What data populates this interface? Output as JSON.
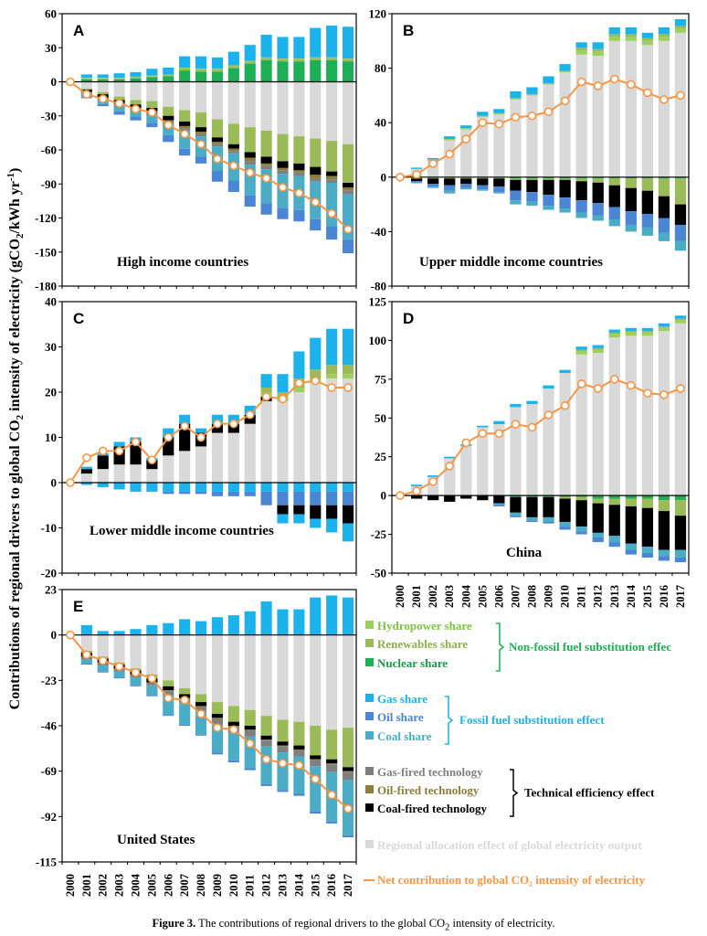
{
  "y_axis_title": "Contributions of regional drivers to global CO",
  "y_axis_title_sub": "2",
  "y_axis_title_rest": " intensity of electricity (gCO",
  "y_axis_title_sub2": "2",
  "y_axis_title_unit": "/kWh yr",
  "y_axis_title_sup": "-1",
  "y_axis_title_end": ")",
  "caption": {
    "bold": "Figure 3.",
    "text": " The contributions of regional drivers to the global CO",
    "sub": "2",
    "end": " intensity of electricity."
  },
  "colors": {
    "hydro": "#9bd15a",
    "renew": "#9bbb59",
    "nuclear": "#1daf55",
    "gas_share": "#1cb2ec",
    "oil_share": "#4a86d4",
    "coal_share": "#4bacc6",
    "gas_tech": "#7f7f7f",
    "oil_tech": "#8b7d3a",
    "coal_tech": "#000000",
    "alloc": "#d9d9d9",
    "net": "#f79646"
  },
  "legend": {
    "items": [
      {
        "key": "hydro",
        "label": "Hydropower share",
        "text_color": "#7dc242"
      },
      {
        "key": "renew",
        "label": "Renewables share",
        "text_color": "#8cae4d"
      },
      {
        "key": "nuclear",
        "label": "Nuclear share",
        "text_color": "#1a9a4a"
      },
      {
        "key": "gas_share",
        "label": "Gas share",
        "text_color": "#1cb2ec"
      },
      {
        "key": "oil_share",
        "label": "Oil share",
        "text_color": "#4a86d4"
      },
      {
        "key": "coal_share",
        "label": "Coal share",
        "text_color": "#4bacc6"
      },
      {
        "key": "gas_tech",
        "label": "Gas-fired technology",
        "text_color": "#7f7f7f"
      },
      {
        "key": "oil_tech",
        "label": "Oil-fired technology",
        "text_color": "#8b7d3a"
      },
      {
        "key": "coal_tech",
        "label": "Coal-fired technology",
        "text_color": "#000000"
      },
      {
        "key": "alloc",
        "label": "Regional allocation effect of global electricity output",
        "text_color": "#d9d9d9"
      },
      {
        "key": "net",
        "label": "Net contribution to global CO₂ intensity of electricity",
        "text_color": "#f79646"
      }
    ],
    "groups": [
      {
        "label": "Non-fossil fuel substitution effec",
        "text_color": "#1daf55"
      },
      {
        "label": "Fossil fuel substitution effect",
        "text_color": "#1cb2ec"
      },
      {
        "label": "Technical efficiency effect",
        "text_color": "#000000"
      }
    ]
  },
  "chart_data": [
    {
      "type": "bar",
      "panel": "A",
      "title": "High income countries",
      "ylim": [
        -180,
        60
      ],
      "yticks": [
        -180,
        -150,
        -120,
        -90,
        -60,
        -30,
        0,
        30,
        60
      ],
      "categories": [
        "2000",
        "2001",
        "2002",
        "2003",
        "2004",
        "2005",
        "2006",
        "2007",
        "2008",
        "2009",
        "2010",
        "2011",
        "2012",
        "2013",
        "2014",
        "2015",
        "2016",
        "2017"
      ],
      "series": {
        "nuclear": [
          0,
          2,
          2,
          2,
          3,
          4,
          5,
          10,
          9,
          9,
          12,
          16,
          19,
          18,
          18,
          19,
          19,
          18
        ],
        "renew": [
          0,
          1,
          1,
          1,
          1,
          1,
          1,
          2,
          2,
          2,
          2,
          2,
          2,
          2,
          2,
          2,
          2,
          2
        ],
        "hydro": [
          0,
          0.5,
          0.5,
          0.5,
          0.5,
          0.5,
          0.5,
          0.5,
          0.5,
          0.5,
          0.5,
          0.5,
          0.5,
          0.5,
          0.5,
          0.5,
          0.5,
          0.5
        ],
        "gas_share": [
          0,
          3,
          3,
          4,
          4,
          6,
          6,
          10,
          11,
          10,
          12,
          14,
          20,
          19,
          19,
          26,
          28,
          28
        ],
        "alloc_neg": [
          0,
          -6,
          -9,
          -13,
          -16,
          -17,
          -22,
          -25,
          -27,
          -33,
          -37,
          -40,
          -43,
          -46,
          -48,
          -50,
          -52,
          -55
        ],
        "renew_neg": [
          0,
          -1,
          -2,
          -3,
          -4,
          -6,
          -8,
          -10,
          -13,
          -16,
          -18,
          -22,
          -23,
          -24,
          -24,
          -25,
          -27,
          -34
        ],
        "coal_tech": [
          0,
          -2,
          -3,
          -3,
          -3,
          -3,
          -4,
          -4,
          -4,
          -4,
          -4,
          -5,
          -6,
          -6,
          -6,
          -7,
          -4,
          -4
        ],
        "oil_tech": [
          0,
          -0.5,
          -0.5,
          -1,
          -1,
          -1,
          -1,
          -2,
          -2,
          -2,
          -2,
          -3,
          -2,
          -2,
          -2,
          -3,
          -3,
          -3
        ],
        "gas_tech": [
          0,
          -1,
          -1,
          -1,
          -1,
          -2,
          -2,
          -2,
          -2,
          -2,
          -2,
          -3,
          -3,
          -3,
          -3,
          -3,
          -3,
          -3
        ],
        "coal_share": [
          0,
          -3,
          -4,
          -5,
          -6,
          -7,
          -10,
          -16,
          -18,
          -21,
          -24,
          -27,
          -30,
          -30,
          -30,
          -33,
          -38,
          -40
        ],
        "oil_share": [
          0,
          -1,
          -2,
          -3,
          -3,
          -4,
          -6,
          -6,
          -6,
          -10,
          -10,
          -10,
          -10,
          -10,
          -10,
          -10,
          -12,
          -12
        ]
      },
      "net": [
        0,
        -11,
        -15,
        -19,
        -24,
        -27,
        -38,
        -46,
        -55,
        -68,
        -74,
        -80,
        -85,
        -93,
        -98,
        -106,
        -116,
        -130
      ]
    },
    {
      "type": "bar",
      "panel": "B",
      "title": "Upper middle income countries",
      "ylim": [
        -80,
        120
      ],
      "yticks": [
        -80,
        -40,
        0,
        40,
        80,
        120
      ],
      "categories": [
        "2000",
        "2001",
        "2002",
        "2003",
        "2004",
        "2005",
        "2006",
        "2007",
        "2008",
        "2009",
        "2010",
        "2011",
        "2012",
        "2013",
        "2014",
        "2015",
        "2016",
        "2017"
      ],
      "series": {
        "alloc": [
          0,
          6,
          12,
          27,
          35,
          44,
          46,
          57,
          60,
          68,
          77,
          90,
          89,
          100,
          100,
          97,
          100,
          106
        ],
        "hydro": [
          0,
          0,
          1,
          1,
          1,
          1,
          1,
          1,
          1,
          1,
          1,
          3,
          3,
          3,
          3,
          3,
          3,
          3
        ],
        "renew": [
          0,
          0,
          0,
          0,
          0,
          0,
          0,
          0,
          0,
          0,
          0,
          2,
          2,
          2,
          2,
          2,
          2,
          2
        ],
        "gas_share": [
          0,
          1,
          1,
          2,
          2,
          3,
          3,
          5,
          5,
          5,
          5,
          4,
          5,
          5,
          5,
          4,
          5,
          5
        ],
        "nuclear_n": [
          0,
          -0.5,
          -0.5,
          -0.5,
          -0.5,
          -0.5,
          -0.5,
          -1,
          -1,
          -1,
          -1,
          -1,
          -1,
          -1,
          -1,
          -1,
          -1,
          -1
        ],
        "renew_neg": [
          0,
          -0.5,
          -0.5,
          -0.5,
          -0.5,
          -0.5,
          -0.5,
          -1,
          -1,
          -1,
          -1,
          -2,
          -3,
          -5,
          -7,
          -9,
          -13,
          -19
        ],
        "coal_tech": [
          0,
          -2,
          -4,
          -5,
          -4,
          -5,
          -6,
          -8,
          -9,
          -11,
          -13,
          -14,
          -15,
          -16,
          -17,
          -17,
          -16,
          -15
        ],
        "oil_share": [
          0,
          -1,
          -2,
          -4,
          -3,
          -3,
          -4,
          -7,
          -7,
          -8,
          -8,
          -9,
          -9,
          -9,
          -10,
          -10,
          -11,
          -12
        ],
        "coal_share": [
          0,
          -0.5,
          -1,
          -2,
          -1,
          -1,
          -1,
          -3,
          -3,
          -3,
          -3,
          -4,
          -4,
          -5,
          -5,
          -6,
          -6,
          -7
        ]
      },
      "net": [
        0,
        2,
        10,
        17,
        28,
        40,
        39,
        44,
        45,
        48,
        56,
        70,
        67,
        72,
        68,
        62,
        57,
        60
      ]
    },
    {
      "type": "bar",
      "panel": "C",
      "title": "Lower middle income countries",
      "ylim": [
        -20,
        40
      ],
      "yticks": [
        -20,
        -10,
        0,
        10,
        20,
        30,
        40
      ],
      "categories": [
        "2000",
        "2001",
        "2002",
        "2003",
        "2004",
        "2005",
        "2006",
        "2007",
        "2008",
        "2009",
        "2010",
        "2011",
        "2012",
        "2013",
        "2014",
        "2015",
        "2016",
        "2017"
      ],
      "series": {
        "alloc": [
          0,
          2,
          3,
          4,
          4,
          3,
          6,
          7,
          8,
          11,
          11,
          13,
          18,
          18,
          20,
          22,
          23,
          23
        ],
        "coal_tech": [
          0,
          1,
          3,
          4,
          5,
          2,
          4,
          6,
          3,
          2,
          2,
          2,
          1,
          0,
          0,
          0,
          0,
          0
        ],
        "hydro": [
          0,
          0,
          0,
          0,
          0,
          0,
          0,
          0,
          0,
          0,
          0,
          0,
          1,
          1,
          1,
          1,
          1,
          1
        ],
        "renew": [
          0,
          0,
          0,
          0,
          0,
          0,
          0,
          0,
          0,
          0,
          0,
          0,
          1,
          1,
          2,
          2,
          2,
          2
        ],
        "gas_share": [
          0,
          0.5,
          0.5,
          1,
          1,
          0.5,
          2,
          2,
          1,
          2,
          2,
          2,
          3,
          4,
          6,
          7,
          8,
          8
        ],
        "gas_neg": [
          0,
          -0.5,
          -1,
          -1.5,
          -2,
          -2,
          -2,
          -2,
          -2,
          -2,
          -2,
          -2,
          -2,
          -2,
          -2,
          -2,
          -2,
          -2
        ],
        "oil_neg": [
          0,
          0,
          0,
          0,
          0,
          0,
          -0.5,
          -0.5,
          -0.5,
          -1,
          -1,
          -1,
          -3,
          -3,
          -3,
          -3,
          -3,
          -3
        ],
        "coal_tech_n": [
          0,
          0,
          0,
          0,
          0,
          0,
          0,
          0,
          0,
          0,
          0,
          0,
          0,
          -2,
          -2,
          -3,
          -3,
          -4
        ],
        "gas_share_n": [
          0,
          0,
          0,
          0,
          0,
          0,
          0,
          0,
          0,
          0,
          0,
          0,
          0,
          -2,
          -2,
          -2,
          -3,
          -4
        ]
      },
      "net": [
        0,
        5.5,
        7,
        7,
        9,
        5,
        10,
        12.5,
        10,
        13,
        13,
        15,
        19,
        18.5,
        22,
        22.5,
        21,
        21
      ]
    },
    {
      "type": "bar",
      "panel": "D",
      "title": "China",
      "ylim": [
        -50,
        125
      ],
      "yticks": [
        -50,
        -25,
        0,
        25,
        50,
        75,
        100,
        125
      ],
      "categories": [
        "2000",
        "2001",
        "2002",
        "2003",
        "2004",
        "2005",
        "2006",
        "2007",
        "2008",
        "2009",
        "2010",
        "2011",
        "2012",
        "2013",
        "2014",
        "2015",
        "2016",
        "2017"
      ],
      "series": {
        "alloc": [
          0,
          6,
          12,
          24,
          32,
          44,
          46,
          57,
          59,
          69,
          79,
          91,
          92,
          102,
          103,
          103,
          106,
          111
        ],
        "hydro": [
          0,
          0,
          0,
          0,
          0,
          0,
          0,
          0,
          0,
          0,
          0,
          2,
          2,
          2,
          2,
          2,
          2,
          2
        ],
        "renew": [
          0,
          0,
          0,
          0,
          0,
          0,
          0,
          0,
          0,
          0,
          0,
          1,
          1,
          1,
          1,
          1,
          1,
          1
        ],
        "gas_share": [
          0,
          1,
          1,
          1,
          1,
          1,
          2,
          2,
          2,
          2,
          2,
          2,
          2,
          2,
          2,
          2,
          2,
          2
        ],
        "nuclear_n": [
          0,
          0,
          0,
          0,
          0,
          0,
          0,
          -1,
          -1,
          -1,
          -1,
          -1,
          -2,
          -2,
          -2,
          -2,
          -3,
          -3
        ],
        "renew_neg": [
          0,
          0,
          0,
          0,
          0,
          0,
          0,
          0,
          0,
          0,
          -1,
          -2,
          -3,
          -4,
          -5,
          -6,
          -7,
          -10
        ],
        "coal_tech": [
          0,
          -2,
          -3,
          -4,
          -2,
          -3,
          -5,
          -10,
          -13,
          -13,
          -15,
          -17,
          -19,
          -20,
          -24,
          -25,
          -25,
          -22
        ],
        "coal_share": [
          0,
          0,
          0,
          0,
          0,
          0,
          -1,
          -2,
          -2,
          -3,
          -3,
          -3,
          -3,
          -4,
          -4,
          -4,
          -4,
          -5
        ],
        "oil_share": [
          0,
          0,
          0,
          0,
          0,
          0,
          -1,
          -1,
          -1,
          -1,
          -2,
          -2,
          -3,
          -3,
          -3,
          -3,
          -3,
          -3
        ]
      },
      "net": [
        0,
        3,
        9,
        19,
        34,
        40,
        40,
        46,
        44,
        52,
        58,
        72,
        69,
        75,
        71,
        66,
        65,
        69
      ]
    },
    {
      "type": "bar",
      "panel": "E",
      "title": "United States",
      "ylim": [
        -115,
        23
      ],
      "yticks": [
        -115,
        -92,
        -69,
        -46,
        -23,
        0,
        23
      ],
      "categories": [
        "2000",
        "2001",
        "2002",
        "2003",
        "2004",
        "2005",
        "2006",
        "2007",
        "2008",
        "2009",
        "2010",
        "2011",
        "2012",
        "2013",
        "2014",
        "2015",
        "2016",
        "2017"
      ],
      "series": {
        "gas_share": [
          0,
          5,
          2,
          2,
          3,
          5,
          6,
          8,
          7,
          9,
          10,
          12,
          17,
          13,
          13,
          19,
          20,
          19
        ],
        "nuclear": [
          0,
          0,
          0,
          0,
          0,
          0,
          0,
          0,
          0,
          0,
          0,
          0,
          0,
          0,
          0,
          0,
          0,
          0
        ],
        "alloc_neg": [
          0,
          -8,
          -11,
          -14,
          -17,
          -20,
          -23,
          -27,
          -30,
          -34,
          -36,
          -38,
          -41,
          -43,
          -44,
          -46,
          -48,
          -47
        ],
        "renew_neg": [
          0,
          -1,
          -1,
          -1,
          -1,
          -2,
          -3,
          -3,
          -4,
          -6,
          -8,
          -8,
          -10,
          -11,
          -12,
          -15,
          -15,
          -20
        ],
        "coal_tech": [
          0,
          -2,
          -2,
          -2,
          -2,
          -2,
          -2,
          -2,
          -2,
          -2,
          -2,
          -2,
          -2,
          -2,
          -2,
          -2,
          -2,
          -2
        ],
        "oil_tech": [
          0,
          -0.5,
          -0.5,
          -0.5,
          -0.5,
          -0.5,
          -0.5,
          -0.5,
          -0.5,
          -0.5,
          -0.5,
          -0.5,
          -0.5,
          -0.5,
          -0.5,
          -0.5,
          -0.5,
          -0.5
        ],
        "gas_tech": [
          0,
          -1,
          -1,
          -1,
          -1,
          -1,
          -2,
          -2,
          -2,
          -3,
          -3,
          -3,
          -3,
          -3,
          -3,
          -3,
          -4,
          -4
        ],
        "coal_share": [
          0,
          -2,
          -3,
          -3,
          -4,
          -5,
          -10,
          -11,
          -12,
          -14,
          -14,
          -16,
          -19,
          -19,
          -19,
          -23,
          -25,
          -28
        ],
        "oil_share": [
          0,
          -0.5,
          -0.5,
          -0.5,
          -0.5,
          -0.5,
          -0.5,
          -0.5,
          -0.5,
          -1,
          -1,
          -1,
          -1,
          -1,
          -1,
          -1,
          -1,
          -1
        ]
      },
      "net": [
        0,
        -10,
        -13,
        -16,
        -19,
        -22,
        -32,
        -33,
        -40,
        -47,
        -48,
        -55,
        -63,
        -65,
        -66,
        -73,
        -81,
        -88
      ]
    }
  ]
}
